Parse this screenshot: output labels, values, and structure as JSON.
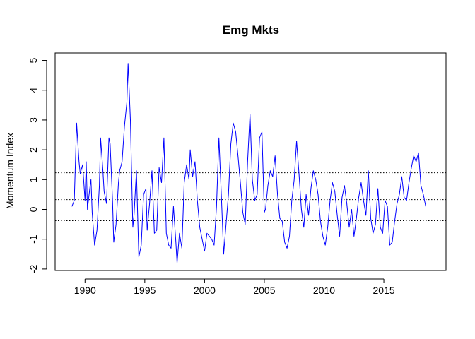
{
  "chart_data": {
    "type": "line",
    "title": "Emg Mkts",
    "xlabel": "",
    "ylabel": "Momentum Index",
    "xlim": [
      1987.5,
      2020.2
    ],
    "ylim": [
      -2.05,
      5.25
    ],
    "x_ticks": [
      1990,
      1995,
      2000,
      2005,
      2010,
      2015
    ],
    "y_ticks": [
      -2,
      -1,
      0,
      1,
      2,
      3,
      4,
      5
    ],
    "reference_lines": [
      1.23,
      0.33,
      -0.38
    ],
    "reference_line_style": "dotted",
    "grid": false,
    "legend": "none",
    "series": [
      {
        "color": "#0000ff",
        "x": [
          1988.9,
          1989.1,
          1989.3,
          1989.5,
          1989.6,
          1989.8,
          1990.0,
          1990.1,
          1990.2,
          1990.4,
          1990.5,
          1990.6,
          1990.8,
          1991.0,
          1991.2,
          1991.3,
          1991.5,
          1991.6,
          1991.8,
          1992.0,
          1992.1,
          1992.3,
          1992.4,
          1992.6,
          1992.8,
          1992.9,
          1993.1,
          1993.3,
          1993.5,
          1993.6,
          1993.8,
          1993.9,
          1994.0,
          1994.1,
          1994.3,
          1994.5,
          1994.7,
          1994.9,
          1995.1,
          1995.2,
          1995.4,
          1995.6,
          1995.8,
          1996.0,
          1996.2,
          1996.4,
          1996.6,
          1996.8,
          1997.0,
          1997.2,
          1997.4,
          1997.6,
          1997.7,
          1997.9,
          1998.1,
          1998.3,
          1998.5,
          1998.7,
          1998.8,
          1999.0,
          1999.2,
          1999.4,
          1999.6,
          1999.8,
          2000.0,
          2000.2,
          2000.4,
          2000.6,
          2000.8,
          2001.0,
          2001.2,
          2001.4,
          2001.6,
          2001.8,
          2002.0,
          2002.2,
          2002.4,
          2002.6,
          2002.8,
          2003.0,
          2003.2,
          2003.4,
          2003.6,
          2003.8,
          2004.0,
          2004.2,
          2004.4,
          2004.6,
          2004.8,
          2005.0,
          2005.1,
          2005.3,
          2005.5,
          2005.7,
          2005.9,
          2006.1,
          2006.3,
          2006.5,
          2006.7,
          2006.9,
          2007.1,
          2007.3,
          2007.5,
          2007.7,
          2007.9,
          2008.1,
          2008.3,
          2008.5,
          2008.7,
          2008.9,
          2009.1,
          2009.3,
          2009.5,
          2009.7,
          2009.9,
          2010.1,
          2010.3,
          2010.5,
          2010.7,
          2010.9,
          2011.1,
          2011.3,
          2011.5,
          2011.7,
          2011.9,
          2012.1,
          2012.3,
          2012.5,
          2012.7,
          2012.9,
          2013.1,
          2013.3,
          2013.5,
          2013.7,
          2013.9,
          2014.1,
          2014.3,
          2014.5,
          2014.7,
          2014.9,
          2015.1,
          2015.3,
          2015.5,
          2015.7,
          2015.9,
          2016.1,
          2016.3,
          2016.5,
          2016.7,
          2016.9,
          2017.1,
          2017.3,
          2017.5,
          2017.7,
          2017.9,
          2018.1,
          2018.3,
          2018.5
        ],
        "y": [
          0.1,
          0.3,
          2.9,
          1.6,
          1.2,
          1.5,
          0.3,
          1.6,
          0.0,
          0.7,
          1.0,
          -0.1,
          -1.2,
          -0.7,
          0.8,
          2.4,
          1.3,
          0.6,
          0.2,
          2.4,
          2.2,
          0.3,
          -1.1,
          -0.5,
          0.9,
          1.3,
          1.6,
          2.8,
          3.6,
          4.9,
          3.0,
          1.2,
          -0.6,
          -0.2,
          1.3,
          -1.6,
          -1.2,
          0.5,
          0.7,
          -0.7,
          0.2,
          1.3,
          -0.8,
          -0.7,
          1.4,
          0.9,
          2.4,
          -0.8,
          -1.2,
          -1.3,
          0.1,
          -1.1,
          -1.8,
          -0.8,
          -1.3,
          0.9,
          1.5,
          1.0,
          2.0,
          1.1,
          1.6,
          0.3,
          -0.6,
          -1.0,
          -1.4,
          -0.8,
          -0.9,
          -1.0,
          -1.2,
          0.1,
          2.4,
          0.5,
          -1.5,
          -0.5,
          0.5,
          2.2,
          2.9,
          2.6,
          1.8,
          0.9,
          -0.1,
          -0.5,
          1.6,
          3.2,
          1.0,
          0.3,
          0.5,
          2.4,
          2.6,
          -0.1,
          0.0,
          0.8,
          1.3,
          1.1,
          1.8,
          0.5,
          -0.3,
          -0.4,
          -1.1,
          -1.3,
          -0.9,
          0.3,
          1.0,
          2.3,
          1.2,
          0.0,
          -0.6,
          0.5,
          -0.2,
          0.7,
          1.3,
          1.0,
          0.5,
          -0.4,
          -0.9,
          -1.2,
          -0.6,
          0.3,
          0.9,
          0.6,
          -0.2,
          -0.9,
          0.4,
          0.8,
          0.2,
          -0.6,
          0.0,
          -0.9,
          -0.3,
          0.4,
          0.9,
          0.3,
          -0.2,
          1.3,
          -0.3,
          -0.8,
          -0.5,
          0.7,
          -0.6,
          -0.8,
          0.3,
          0.1,
          -1.2,
          -1.1,
          -0.4,
          0.2,
          0.5,
          1.1,
          0.4,
          0.3,
          0.9,
          1.4,
          1.8,
          1.6,
          1.9,
          0.8,
          0.5,
          0.1
        ]
      }
    ]
  }
}
